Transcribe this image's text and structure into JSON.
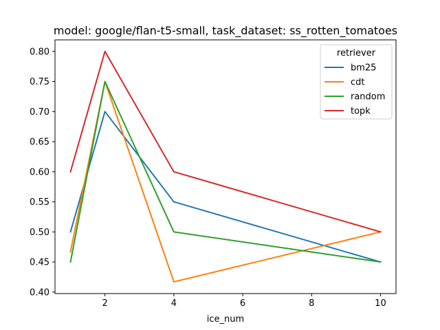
{
  "chart_data": {
    "type": "line",
    "title": "model: google/flan-t5-small, task_dataset: ss_rotten_tomatoes",
    "xlabel": "ice_num",
    "ylabel": "",
    "x": [
      1,
      2,
      4,
      10
    ],
    "xlim": [
      0.55,
      10.45
    ],
    "ylim": [
      0.3975,
      0.8192
    ],
    "xticks": [
      2,
      4,
      6,
      8,
      10
    ],
    "yticks": [
      0.4,
      0.45,
      0.5,
      0.55,
      0.6,
      0.65,
      0.7,
      0.75,
      0.8
    ],
    "xtick_labels": [
      "2",
      "4",
      "6",
      "8",
      "10"
    ],
    "ytick_labels": [
      "0.40",
      "0.45",
      "0.50",
      "0.55",
      "0.60",
      "0.65",
      "0.70",
      "0.75",
      "0.80"
    ],
    "grid": false,
    "legend": {
      "title": "retriever",
      "position": "top-right"
    },
    "series": [
      {
        "name": "bm25",
        "color": "#1f77b4",
        "values": [
          0.5,
          0.7,
          0.55,
          0.45
        ]
      },
      {
        "name": "cdt",
        "color": "#ff7f0e",
        "values": [
          0.467,
          0.75,
          0.417,
          0.5
        ]
      },
      {
        "name": "random",
        "color": "#2ca02c",
        "values": [
          0.45,
          0.75,
          0.5,
          0.45
        ]
      },
      {
        "name": "topk",
        "color": "#d62728",
        "values": [
          0.6,
          0.8,
          0.6,
          0.5
        ]
      }
    ]
  }
}
